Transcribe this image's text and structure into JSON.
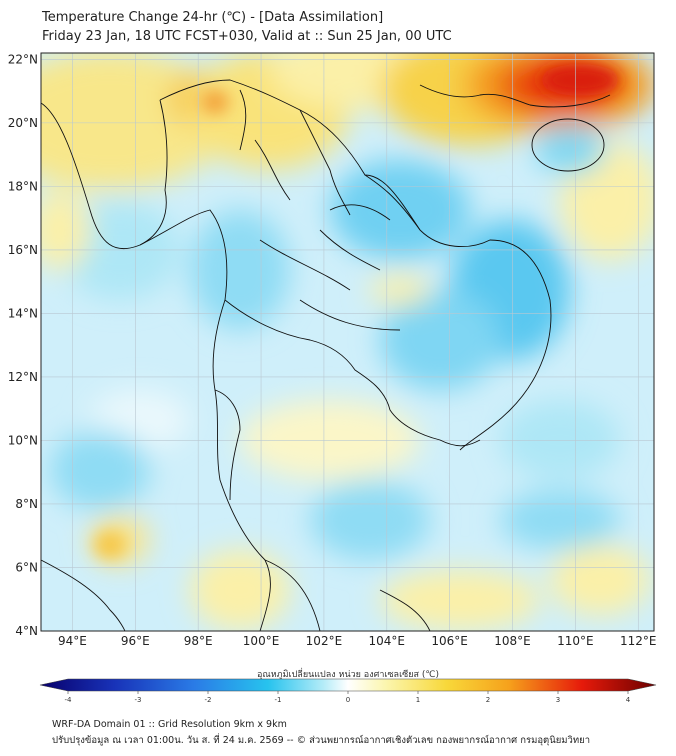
{
  "title": {
    "line1": "Temperature Change 24-hr (℃) - [Data Assimilation]",
    "line2": "Friday 23 Jan, 18 UTC FCST+030, Valid at :: Sun 25 Jan, 00 UTC"
  },
  "map": {
    "lon_range": [
      93,
      112.5
    ],
    "lat_range": [
      4,
      22.2
    ],
    "lon_ticks": [
      "94°E",
      "96°E",
      "98°E",
      "100°E",
      "102°E",
      "104°E",
      "106°E",
      "108°E",
      "110°E",
      "112°E"
    ],
    "lon_tick_values": [
      94,
      96,
      98,
      100,
      102,
      104,
      106,
      108,
      110,
      112
    ],
    "lat_ticks": [
      "22°N",
      "20°N",
      "18°N",
      "16°N",
      "14°N",
      "12°N",
      "10°N",
      "8°N",
      "6°N",
      "4°N"
    ],
    "lat_tick_values": [
      22,
      20,
      18,
      16,
      14,
      12,
      10,
      8,
      6,
      4
    ]
  },
  "colorbar": {
    "label": "อุณหภูมิเปลี่ยนแปลง หน่วย องศาเซลเซียส (℃)",
    "ticks": [
      "-4",
      "-3",
      "-2",
      "-1",
      "0",
      "1",
      "2",
      "3",
      "4"
    ],
    "min": -4,
    "max": 4,
    "colors": {
      "dark_blue": "#08006b",
      "blue": "#1e4fd8",
      "cyan": "#27c3ee",
      "light_cyan": "#aee9f7",
      "white": "#ffffff",
      "light_yellow": "#fbf6b0",
      "orange": "#f6a21c",
      "red": "#e61a0a",
      "dark_red": "#6b0000"
    }
  },
  "footer": {
    "line1": "WRF-DA Domain 01 :: Grid Resolution 9km x 9km",
    "line2": "ปรับปรุงข้อมูล ณ เวลา 01:00น. วัน ส. ที่ 24 ม.ค. 2569 -- © ส่วนพยากรณ์อากาศเชิงตัวเลข กองพยากรณ์อากาศ กรมอุตุนิยมวิทยา"
  }
}
